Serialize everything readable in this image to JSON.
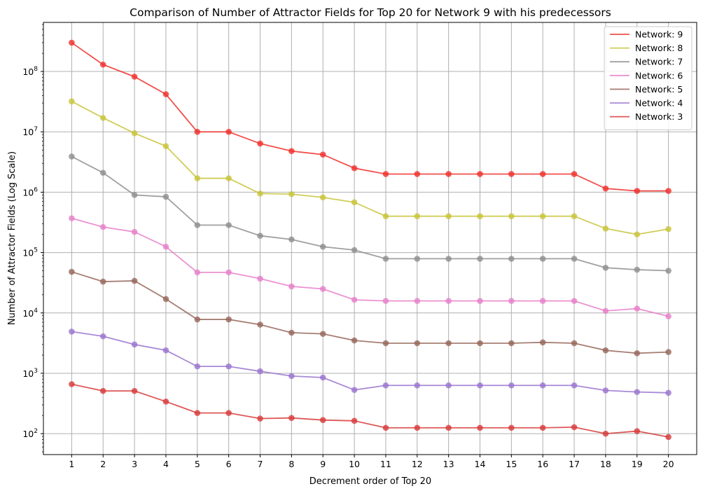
{
  "chart_data": {
    "type": "line",
    "title": "Comparison of Number of Attractor Fields for Top 20 for Network 9 with his predecessors",
    "xlabel": "Decrement order  of Top 20",
    "ylabel": "Number of Attractor Fields (Log Scale)",
    "yscale": "log",
    "ylim": [
      45,
      650000000
    ],
    "grid": true,
    "legend_position": "top-right",
    "x": [
      1,
      2,
      3,
      4,
      5,
      6,
      7,
      8,
      9,
      10,
      11,
      12,
      13,
      14,
      15,
      16,
      17,
      18,
      19,
      20
    ],
    "x_tick_labels": [
      "1",
      "2",
      "3",
      "4",
      "5",
      "6",
      "7",
      "8",
      "9",
      "10",
      "11",
      "12",
      "13",
      "14",
      "15",
      "16",
      "17",
      "18",
      "19",
      "20"
    ],
    "y_tick_labels": [
      {
        "base": "10",
        "exp": "2",
        "value": 100
      },
      {
        "base": "10",
        "exp": "3",
        "value": 1000
      },
      {
        "base": "10",
        "exp": "4",
        "value": 10000
      },
      {
        "base": "10",
        "exp": "5",
        "value": 100000
      },
      {
        "base": "10",
        "exp": "6",
        "value": 1000000
      },
      {
        "base": "10",
        "exp": "7",
        "value": 10000000
      },
      {
        "base": "10",
        "exp": "8",
        "value": 100000000
      }
    ],
    "series": [
      {
        "name": "Network: 9",
        "color": "#f0302c",
        "values": [
          300000000,
          130000000,
          82000000,
          42000000,
          10000000,
          10000000,
          6400000,
          4800000,
          4200000,
          2500000,
          2000000,
          2000000,
          2000000,
          2000000,
          2000000,
          2000000,
          2000000,
          1150000,
          1050000,
          1050000
        ]
      },
      {
        "name": "Network: 8",
        "color": "#c8c43a",
        "values": [
          32000000,
          17000000,
          9500000,
          5800000,
          1700000,
          1700000,
          950000,
          930000,
          820000,
          680000,
          400000,
          400000,
          400000,
          400000,
          400000,
          400000,
          400000,
          250000,
          200000,
          245000
        ]
      },
      {
        "name": "Network: 7",
        "color": "#8f8f8f",
        "values": [
          3900000,
          2100000,
          900000,
          840000,
          285000,
          285000,
          190000,
          165000,
          125000,
          110000,
          79000,
          79000,
          79000,
          79000,
          79000,
          79000,
          79000,
          56000,
          52000,
          50000
        ]
      },
      {
        "name": "Network: 6",
        "color": "#e77fc9",
        "values": [
          370000,
          265000,
          220000,
          125000,
          47000,
          47000,
          37000,
          27500,
          25000,
          16500,
          15800,
          15800,
          15800,
          15800,
          15800,
          15800,
          15800,
          10800,
          11800,
          8800
        ]
      },
      {
        "name": "Network: 5",
        "color": "#96675a",
        "values": [
          48000,
          33000,
          34000,
          17000,
          7800,
          7800,
          6400,
          4700,
          4500,
          3500,
          3150,
          3150,
          3150,
          3150,
          3150,
          3250,
          3150,
          2400,
          2150,
          2250
        ]
      },
      {
        "name": "Network: 4",
        "color": "#9a74d0",
        "values": [
          4900,
          4100,
          3000,
          2400,
          1300,
          1300,
          1080,
          900,
          850,
          530,
          630,
          630,
          630,
          630,
          630,
          630,
          630,
          520,
          490,
          475
        ]
      },
      {
        "name": "Network: 3",
        "color": "#d83a3a",
        "values": [
          660,
          510,
          510,
          340,
          220,
          220,
          178,
          182,
          168,
          163,
          125,
          125,
          125,
          125,
          125,
          125,
          128,
          100,
          110,
          88
        ]
      }
    ]
  }
}
